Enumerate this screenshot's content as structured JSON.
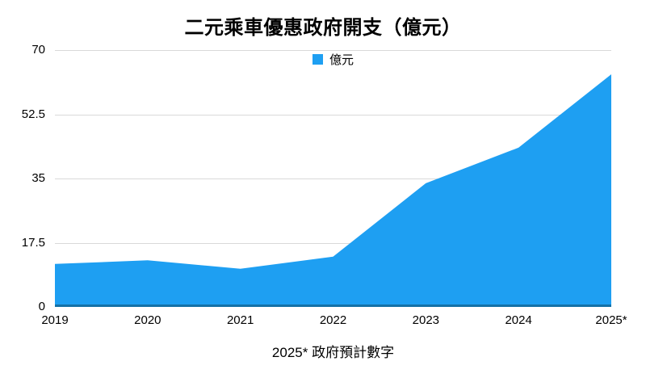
{
  "title": "二元乘車優惠政府開支（億元）",
  "legend": {
    "label": "億元"
  },
  "footnote": "2025* 政府預計數字",
  "colors": {
    "area": "#1E9FF2",
    "baseline": "#1571A6",
    "gridline": "#d9d9d9",
    "text": "#000000"
  },
  "chart_data": {
    "type": "area",
    "title": "二元乘車優惠政府開支（億元）",
    "categories": [
      "2019",
      "2020",
      "2021",
      "2022",
      "2023",
      "2024",
      "2025*"
    ],
    "series": [
      {
        "name": "億元",
        "values": [
          11.7,
          12.7,
          10.4,
          13.7,
          33.7,
          43.4,
          63.4
        ]
      }
    ],
    "xlabel": "",
    "ylabel": "",
    "ylim": [
      0,
      70
    ],
    "yticks": [
      0,
      17.5,
      35,
      52.5,
      70
    ],
    "ytick_labels": [
      "0",
      "17.5",
      "35",
      "52.5",
      "70"
    ],
    "grid": true,
    "legend_position": "top-center",
    "footnote": "2025* 政府預計數字"
  }
}
